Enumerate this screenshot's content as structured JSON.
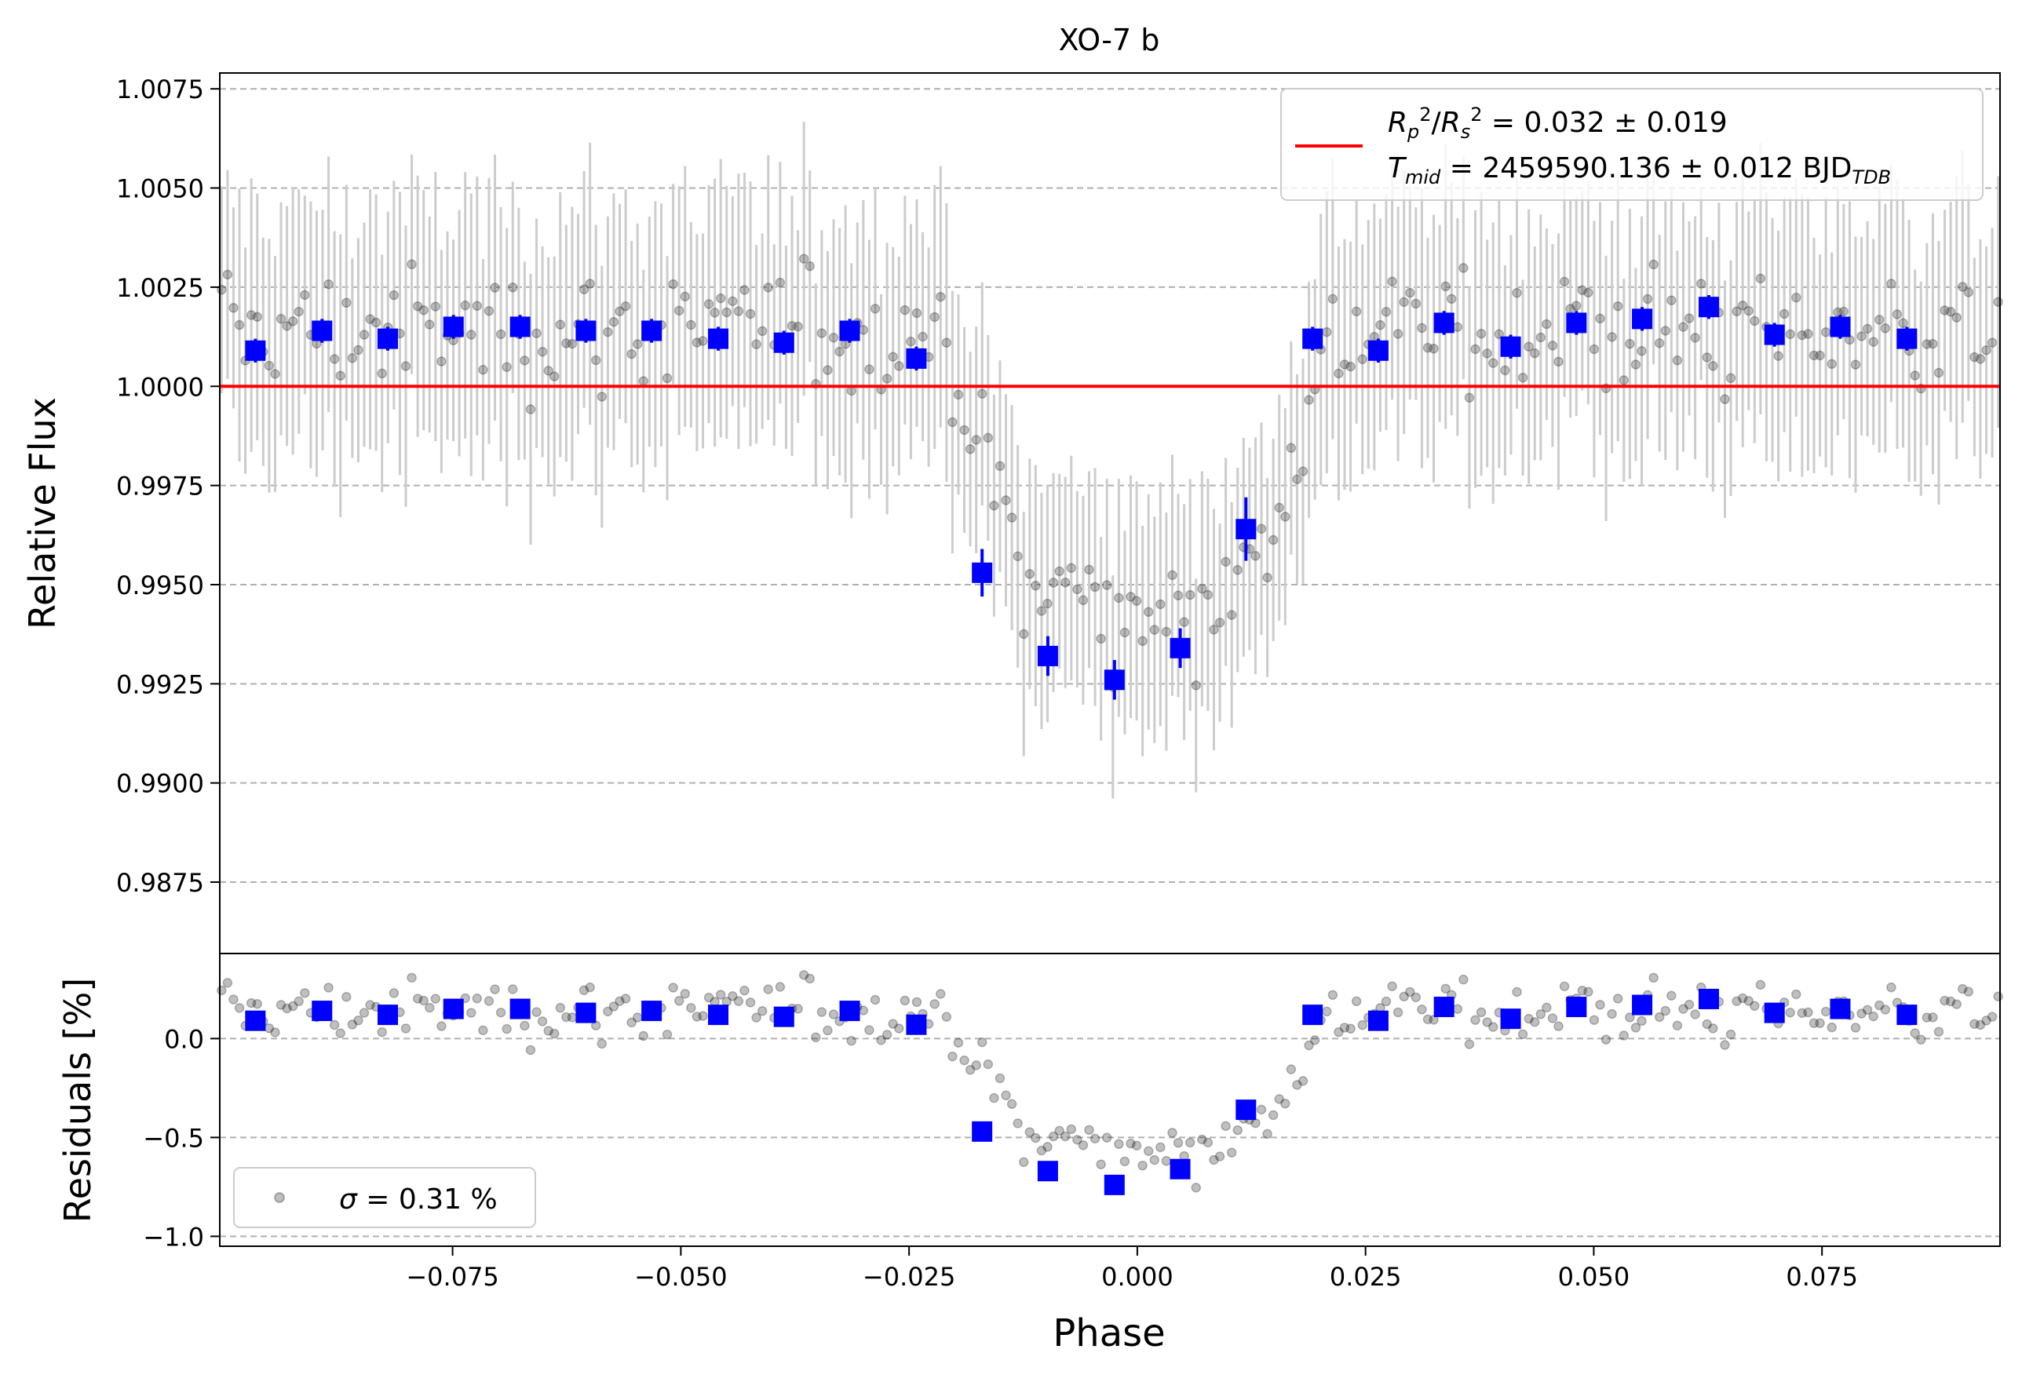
{
  "chart_data": {
    "type": "scatter",
    "title": "XO-7 b",
    "xlabel": "Phase",
    "xlim": [
      -0.1005,
      0.0945
    ],
    "grid": "horizontal dashed",
    "colors": {
      "data_points": "#000000",
      "error_bars": "#cccccc",
      "binned": "#0000ff",
      "model": "#ff0000",
      "grid": "#b0b0b0"
    },
    "top_panel": {
      "ylabel": "Relative Flux",
      "ylim": [
        0.9857,
        1.0079
      ],
      "yticks": [
        "0.9875",
        "0.9900",
        "0.9925",
        "0.9950",
        "0.9975",
        "1.0000",
        "1.0025",
        "1.0050",
        "1.0075"
      ],
      "legend": {
        "position": "upper right",
        "entry_1": "R_p^2/R_s^2 = 0.032 ± 0.019",
        "entry_2": "T_mid = 2459590.136 ± 0.012 BJD_TDB",
        "rp_sym": "R",
        "rp_sub": "p",
        "rp_sup": "2",
        "rs_sym": "R",
        "rs_sub": "s",
        "rs_sup": "2",
        "rp_rest": " = 0.032 ± 0.019",
        "t_sym": "T",
        "t_sub": "mid",
        "t_rest": " = 2459590.136 ± 0.012 BJD",
        "t_unit_sub": "TDB"
      },
      "model_flux": 1.0,
      "binned": {
        "x": [
          -0.0966,
          -0.0893,
          -0.0821,
          -0.0749,
          -0.0676,
          -0.0604,
          -0.0532,
          -0.0459,
          -0.0387,
          -0.0315,
          -0.0242,
          -0.017,
          -0.0098,
          -0.0025,
          0.0047,
          0.0119,
          0.0192,
          0.0264,
          0.0336,
          0.0409,
          0.0481,
          0.0553,
          0.0626,
          0.0698,
          0.077,
          0.0843
        ],
        "y": [
          1.0009,
          1.0014,
          1.0012,
          1.0015,
          1.0015,
          1.0014,
          1.0014,
          1.0012,
          1.0011,
          1.0014,
          1.0007,
          0.9953,
          0.9932,
          0.9926,
          0.9934,
          0.9964,
          1.0012,
          1.0009,
          1.0016,
          1.001,
          1.0016,
          1.0017,
          1.002,
          1.0013,
          1.0015,
          1.0012
        ],
        "err": [
          0.0003,
          0.0003,
          0.0003,
          0.0003,
          0.0003,
          0.0003,
          0.0003,
          0.0003,
          0.0003,
          0.0003,
          0.0003,
          0.0006,
          0.0005,
          0.0005,
          0.0005,
          0.0008,
          0.0003,
          0.0003,
          0.0003,
          0.0003,
          0.0003,
          0.0003,
          0.0003,
          0.0003,
          0.0003,
          0.0003
        ]
      }
    },
    "bottom_panel": {
      "ylabel": "Residuals [%]",
      "ylim": [
        -1.05,
        0.43
      ],
      "yticks": [
        "-1.0",
        "-0.5",
        "0.0"
      ],
      "legend": {
        "position": "lower left",
        "sigma_sym": "σ",
        "sigma_rest": " = 0.31 %"
      },
      "binned": {
        "y": [
          0.09,
          0.14,
          0.12,
          0.15,
          0.15,
          0.13,
          0.14,
          0.12,
          0.11,
          0.14,
          0.07,
          -0.47,
          -0.67,
          -0.74,
          -0.66,
          -0.36,
          0.12,
          0.09,
          0.16,
          0.1,
          0.16,
          0.17,
          0.2,
          0.13,
          0.15,
          0.12
        ]
      }
    },
    "xticks": [
      "−0.075",
      "−0.050",
      "−0.025",
      "0.000",
      "0.025",
      "0.050",
      "0.075"
    ]
  }
}
